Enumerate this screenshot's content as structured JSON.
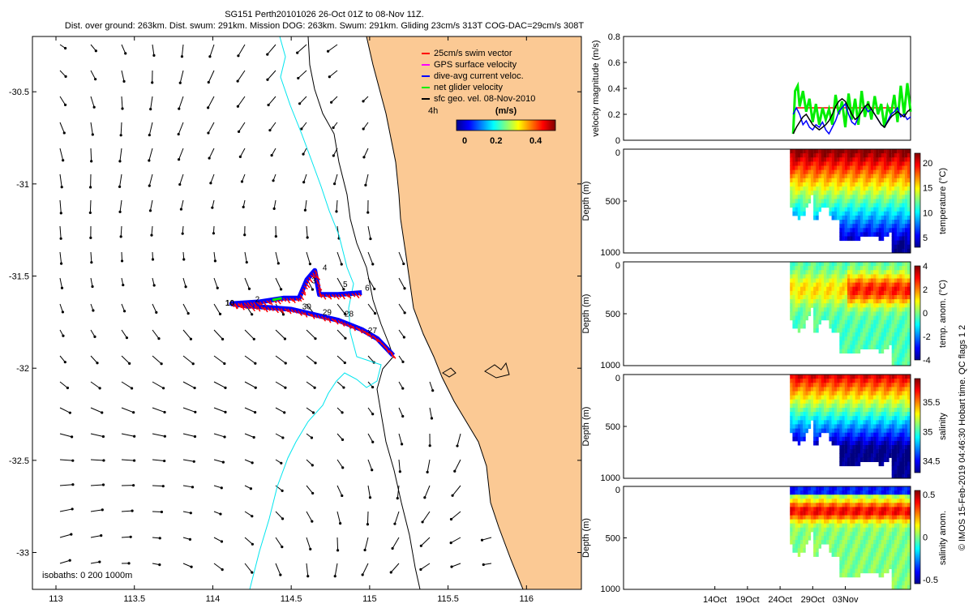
{
  "header": {
    "title": "SG151 Perth20101026 26-Oct 01Z to 08-Nov 11Z.",
    "subtitle": "Dist. over ground: 263km. Dist. swum: 291km. Mission DOG: 263km. Swum: 291km. Gliding 23cm/s 313T COG-DAC=29cm/s 308T"
  },
  "side_note": "© IMOS 15-Feb-2019 04:46:30 Hobart time. QC flags 1  2",
  "colors": {
    "land": "#fbc994",
    "isobath200": "#000000",
    "isobath1000": "#00e5ee",
    "swim": "#ff0000",
    "gps": "#ff00ff",
    "dac": "#0000ff",
    "net": "#00ee00",
    "sfc": "#000000"
  },
  "chart_data": [
    {
      "type": "map",
      "xlim": [
        112.85,
        116.35
      ],
      "ylim": [
        -33.2,
        -30.2
      ],
      "x_ticks": [
        "113",
        "113.5",
        "114",
        "114.5",
        "115",
        "115.5",
        "116"
      ],
      "x_tick_values": [
        113,
        113.5,
        114,
        114.5,
        115,
        115.5,
        116
      ],
      "y_ticks": [
        "-30.5",
        "-31",
        "-31.5",
        "-32",
        "-32.5",
        "-33"
      ],
      "y_tick_values": [
        -30.5,
        -31,
        -31.5,
        -32,
        -32.5,
        -33
      ],
      "legend": [
        {
          "label": "25cm/s swim vector",
          "color": "#ff0000"
        },
        {
          "label": "GPS surface velocity",
          "color": "#ff00ff"
        },
        {
          "label": "dive-avg current veloc.",
          "color": "#0000ff"
        },
        {
          "label": "net glider velocity",
          "color": "#00ee00"
        },
        {
          "label": "sfc geo. vel. 08-Nov-2010",
          "color": "#000000"
        }
      ],
      "legend_placement": "top-right",
      "colorbar": {
        "label": "(m/s)",
        "prefix": "4h",
        "ticks": [
          "0",
          "0.2",
          "0.4"
        ],
        "range": [
          0,
          0.5
        ]
      },
      "isobaths_label": "isobaths: 0   200  1000m",
      "track": [
        [
          115.15,
          -31.93
        ],
        [
          115.05,
          -31.84
        ],
        [
          114.95,
          -31.79
        ],
        [
          114.8,
          -31.74
        ],
        [
          114.65,
          -31.71
        ],
        [
          114.5,
          -31.68
        ],
        [
          114.35,
          -31.67
        ],
        [
          114.2,
          -31.66
        ],
        [
          114.12,
          -31.65
        ],
        [
          114.3,
          -31.64
        ],
        [
          114.45,
          -31.62
        ],
        [
          114.55,
          -31.62
        ],
        [
          114.6,
          -31.52
        ],
        [
          114.65,
          -31.47
        ],
        [
          114.68,
          -31.6
        ],
        [
          114.8,
          -31.6
        ],
        [
          114.95,
          -31.59
        ]
      ],
      "day_labels": [
        {
          "text": "4",
          "x": 114.7,
          "y": -31.47
        },
        {
          "text": "3",
          "x": 114.63,
          "y": -31.54
        },
        {
          "text": "5",
          "x": 114.83,
          "y": -31.56
        },
        {
          "text": "6",
          "x": 114.97,
          "y": -31.58
        },
        {
          "text": "10",
          "x": 114.08,
          "y": -31.66
        },
        {
          "text": "2",
          "x": 114.27,
          "y": -31.64
        },
        {
          "text": "30",
          "x": 114.57,
          "y": -31.68
        },
        {
          "text": "29",
          "x": 114.7,
          "y": -31.71
        },
        {
          "text": "28",
          "x": 114.84,
          "y": -31.72
        },
        {
          "text": "27",
          "x": 114.99,
          "y": -31.81
        }
      ]
    },
    {
      "type": "line",
      "ylabel": "velocity magnitude (m/s)",
      "ylim": [
        0,
        0.8
      ],
      "y_ticks": [
        "0",
        "0.2",
        "0.4",
        "0.6",
        "0.8"
      ],
      "x_day_range": [
        0,
        44
      ],
      "series": [
        {
          "color": "#ff0000",
          "x": [
            26.5,
            42
          ],
          "y": [
            0.25,
            0.25
          ]
        },
        {
          "color": "#00ee00",
          "x": [
            26,
            26.3,
            26.7,
            27,
            27.5,
            28,
            28.5,
            29,
            29.5,
            30,
            30.5,
            31,
            31.5,
            32,
            32.5,
            33,
            33.5,
            34,
            34.5,
            35,
            35.5,
            36,
            36.5,
            37,
            37.5,
            38,
            38.5,
            39,
            39.5,
            40,
            40.5,
            41,
            41.5,
            42,
            42.5,
            43,
            43.5,
            44
          ],
          "y": [
            0.05,
            0.38,
            0.42,
            0.26,
            0.38,
            0.22,
            0.32,
            0.14,
            0.28,
            0.12,
            0.25,
            0.16,
            0.24,
            0.12,
            0.35,
            0.2,
            0.3,
            0.1,
            0.36,
            0.16,
            0.32,
            0.12,
            0.38,
            0.18,
            0.3,
            0.16,
            0.34,
            0.2,
            0.28,
            0.1,
            0.26,
            0.2,
            0.35,
            0.14,
            0.42,
            0.2,
            0.44,
            0.22
          ]
        },
        {
          "color": "#0000ff",
          "x": [
            26,
            26.5,
            27,
            27.5,
            28,
            28.5,
            29,
            29.5,
            30,
            30.5,
            31,
            31.5,
            32,
            32.5,
            33,
            33.5,
            34,
            34.5,
            35,
            35.5,
            36,
            36.5,
            37,
            37.5,
            38,
            38.5,
            39,
            39.5,
            40,
            40.5,
            41,
            41.5,
            42,
            42.5,
            43,
            43.5,
            44
          ],
          "y": [
            0.2,
            0.25,
            0.2,
            0.12,
            0.15,
            0.1,
            0.08,
            0.12,
            0.1,
            0.14,
            0.08,
            0.05,
            0.1,
            0.15,
            0.22,
            0.25,
            0.28,
            0.2,
            0.14,
            0.12,
            0.18,
            0.22,
            0.26,
            0.22,
            0.24,
            0.2,
            0.16,
            0.12,
            0.1,
            0.15,
            0.2,
            0.22,
            0.25,
            0.18,
            0.2,
            0.16,
            0.18
          ]
        },
        {
          "color": "#000000",
          "x": [
            26,
            26.5,
            27,
            27.5,
            28,
            28.5,
            29,
            29.5,
            30,
            30.5,
            31,
            31.5,
            32,
            32.5,
            33,
            33.5,
            34,
            34.5,
            35,
            35.5,
            36,
            36.5,
            37,
            37.5,
            38,
            38.5,
            39,
            39.5,
            40,
            40.5,
            41,
            41.5,
            42,
            42.5,
            43,
            43.5,
            44
          ],
          "y": [
            0.05,
            0.1,
            0.14,
            0.18,
            0.2,
            0.16,
            0.12,
            0.1,
            0.08,
            0.1,
            0.12,
            0.15,
            0.2,
            0.26,
            0.3,
            0.32,
            0.3,
            0.25,
            0.2,
            0.16,
            0.18,
            0.22,
            0.26,
            0.28,
            0.24,
            0.2,
            0.16,
            0.12,
            0.1,
            0.14,
            0.18,
            0.2,
            0.22,
            0.2,
            0.18,
            0.22,
            0.24
          ]
        }
      ]
    },
    {
      "type": "heatmap",
      "ylabel": "Depth (m)",
      "cbar_label": "temperature (°C)",
      "cbar_ticks": [
        "20",
        "15",
        "10",
        "5"
      ],
      "cbar_tick_values": [
        20,
        15,
        10,
        5
      ],
      "cbar_range": [
        3,
        22
      ],
      "y_ticks": [
        "0",
        "500",
        "1000"
      ],
      "ylim": [
        0,
        1000
      ]
    },
    {
      "type": "heatmap",
      "ylabel": "Depth (m)",
      "cbar_label": "temp. anom. (°C)",
      "cbar_ticks": [
        "4",
        "2",
        "0",
        "-2",
        "-4"
      ],
      "cbar_tick_values": [
        4,
        2,
        0,
        -2,
        -4
      ],
      "cbar_range": [
        -4,
        4
      ],
      "y_ticks": [
        "0",
        "500",
        "1000"
      ],
      "ylim": [
        0,
        1000
      ]
    },
    {
      "type": "heatmap",
      "ylabel": "Depth (m)",
      "cbar_label": "salinity",
      "cbar_ticks": [
        "35.5",
        "35",
        "34.5"
      ],
      "cbar_tick_values": [
        35.5,
        35,
        34.5
      ],
      "cbar_range": [
        34.3,
        35.9
      ],
      "y_ticks": [
        "0",
        "500",
        "1000"
      ],
      "ylim": [
        0,
        1000
      ]
    },
    {
      "type": "heatmap",
      "ylabel": "Depth (m)",
      "cbar_label": "salinity anom.",
      "cbar_ticks": [
        "0.5",
        "0",
        "-0.5"
      ],
      "cbar_tick_values": [
        0.5,
        0,
        -0.5
      ],
      "cbar_range": [
        -0.55,
        0.55
      ],
      "y_ticks": [
        "0",
        "500",
        "1000"
      ],
      "ylim": [
        0,
        1000
      ],
      "x_ticks": [
        "14Oct",
        "19Oct",
        "24Oct",
        "29Oct",
        "03Nov"
      ],
      "x_tick_days": [
        14,
        19,
        24,
        29,
        34
      ]
    }
  ]
}
